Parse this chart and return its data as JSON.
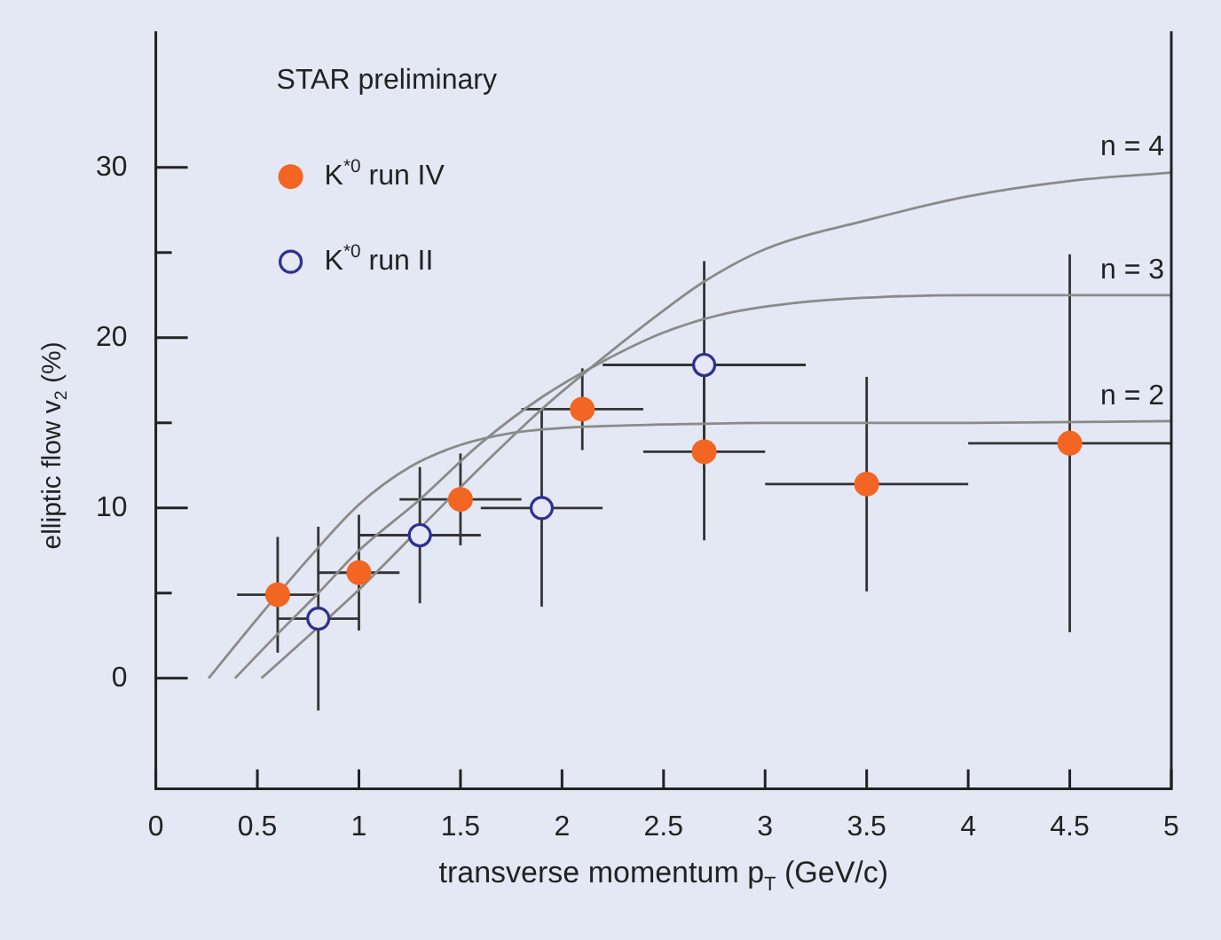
{
  "chart_data": {
    "type": "scatter",
    "xlabel": "transverse momentum p$_{T}$ (GeV/c)",
    "ylabel": "elliptic flow v$_{2}$ (%)",
    "annotations": [
      "STAR preliminary"
    ],
    "xlim": [
      0,
      5
    ],
    "xticks": [
      0,
      0.5,
      1,
      1.5,
      2,
      2.5,
      3,
      3.5,
      4,
      4.5,
      5
    ],
    "ylim": [
      -6.5,
      38
    ],
    "yticks": [
      0,
      {
        "value": 5,
        "label": null
      },
      10,
      {
        "value": 15,
        "label": null
      },
      20,
      {
        "value": 25,
        "label": null
      },
      30
    ],
    "grid": false,
    "legend": "top left",
    "tick_labels": "xy",
    "series": [
      {
        "name": "K$^{*0}$ run IV",
        "marker": "circle",
        "color": "#f26522",
        "x": [
          0.6,
          1.0,
          1.5,
          2.1,
          2.7,
          3.5,
          4.5
        ],
        "values": [
          4.9,
          6.2,
          10.5,
          15.8,
          13.3,
          11.4,
          13.8
        ],
        "errors": [
          3.4,
          3.4,
          2.7,
          2.4,
          5.2,
          6.3,
          11.1
        ],
        "xerrors": [
          0.2,
          0.2,
          0.3,
          0.3,
          0.3,
          0.5,
          0.5
        ]
      },
      {
        "name": "K$^{*0}$ run II",
        "marker": "circle",
        "color": "#2e3192",
        "x": [
          0.8,
          1.3,
          1.9,
          2.7
        ],
        "values": [
          3.5,
          8.4,
          10.0,
          18.4
        ],
        "errors": [
          5.4,
          4.0,
          5.8,
          6.1
        ],
        "xerrors": [
          0.2,
          0.3,
          0.3,
          0.5
        ]
      },
      {
        "name": "n = 2",
        "type": "line",
        "marker": "none",
        "color": "#8a8a8a",
        "x": [
          0.26,
          0.5,
          0.75,
          1.0,
          1.25,
          1.5,
          1.75,
          2.0,
          2.5,
          3,
          4,
          5
        ],
        "values": [
          0,
          3.5,
          7,
          10.2,
          12.4,
          13.7,
          14.4,
          14.7,
          14.9,
          15.0,
          15.0,
          15.1
        ]
      },
      {
        "name": "n = 3",
        "type": "line",
        "marker": "none",
        "color": "#8a8a8a",
        "x": [
          0.39,
          0.6,
          0.8,
          1.0,
          1.3,
          1.6,
          1.9,
          2.2,
          2.5,
          2.8,
          3.2,
          3.6,
          4,
          5
        ],
        "values": [
          0,
          2.6,
          5,
          7.5,
          10.5,
          13.8,
          16.5,
          18.6,
          20.3,
          21.4,
          22.1,
          22.4,
          22.5,
          22.5
        ]
      },
      {
        "name": "n = 4",
        "type": "line",
        "marker": "none",
        "color": "#8a8a8a",
        "x": [
          0.52,
          0.8,
          1.0,
          1.3,
          1.6,
          1.9,
          2.2,
          2.5,
          2.7,
          3.0,
          3.5,
          4,
          4.5,
          5
        ],
        "values": [
          0,
          3,
          5.2,
          8.8,
          12.4,
          15.8,
          18.8,
          21.6,
          23.3,
          25.2,
          26.9,
          28.3,
          29.2,
          29.7
        ]
      }
    ]
  }
}
